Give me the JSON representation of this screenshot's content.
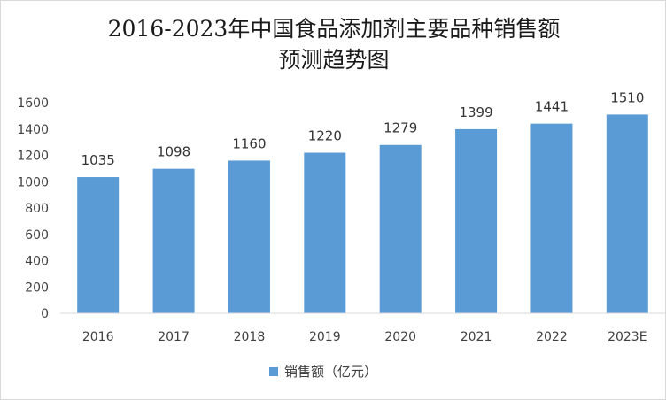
{
  "chart_data": {
    "type": "bar",
    "title": "2016-2023年中国食品添加剂主要品种销售额预测趋势图",
    "title_line1": "2016-2023年中国食品添加剂主要品种销售额",
    "title_line2": "预测趋势图",
    "categories": [
      "2016",
      "2017",
      "2018",
      "2019",
      "2020",
      "2021",
      "2022",
      "2023E"
    ],
    "series": [
      {
        "name": "销售额（亿元）",
        "values": [
          1035,
          1098,
          1160,
          1220,
          1279,
          1399,
          1441,
          1510
        ]
      }
    ],
    "ylim": [
      0,
      1600
    ],
    "yticks": [
      0,
      200,
      400,
      600,
      800,
      1000,
      1200,
      1400,
      1600
    ],
    "grid": false,
    "legend_position": "bottom",
    "xlabel": "",
    "ylabel": "",
    "bar_color": "#5b9bd5"
  }
}
